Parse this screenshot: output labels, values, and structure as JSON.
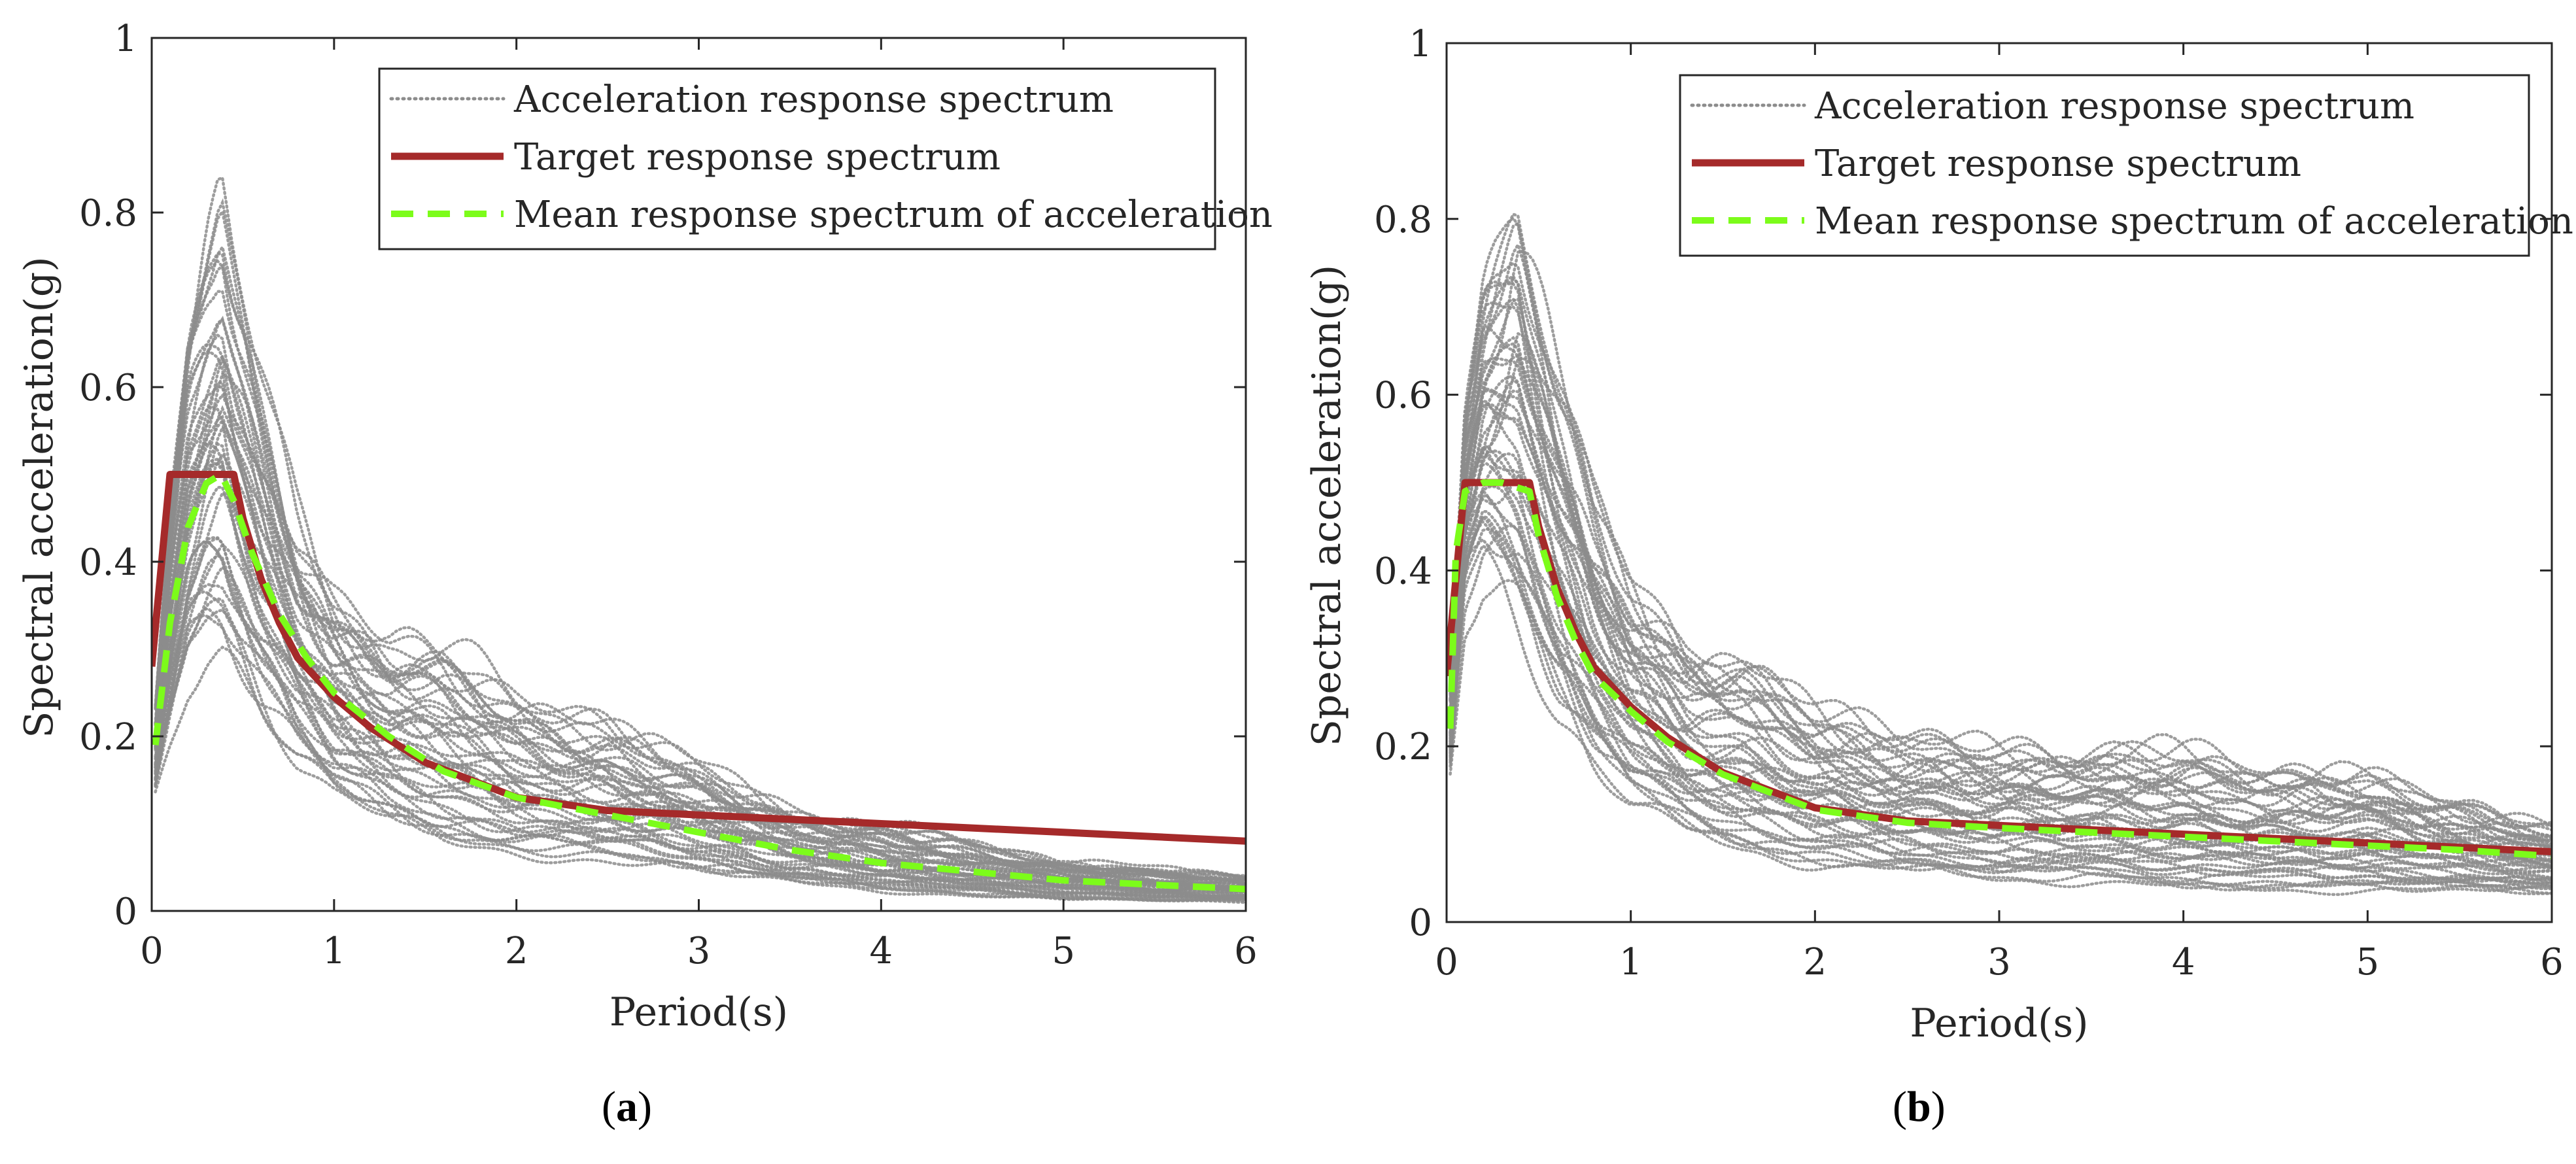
{
  "chart_data": [
    {
      "id": "a",
      "type": "line",
      "caption_label": "a",
      "xlabel": "Period(s)",
      "ylabel": "Spectral acceleration(g)",
      "xlim": [
        0,
        6
      ],
      "ylim": [
        0,
        1
      ],
      "xticks": [
        "0",
        "1",
        "2",
        "3",
        "4",
        "5",
        "6"
      ],
      "yticks": [
        "0",
        "0.2",
        "0.4",
        "0.6",
        "0.8",
        "1"
      ],
      "legend": [
        "Acceleration response spectrum",
        "Target response spectrum",
        "Mean response spectrum of acceleration"
      ],
      "legend_position": "top-right",
      "band_note": "many individual acceleration response spectra drawn as grey dotted lines; envelope approximated",
      "band": {
        "x": [
          0.02,
          0.1,
          0.2,
          0.3,
          0.38,
          0.45,
          0.6,
          0.8,
          1.0,
          1.3,
          1.6,
          2.0,
          2.5,
          3.0,
          3.5,
          4.0,
          4.5,
          5.0,
          5.5,
          6.0
        ],
        "upper": [
          0.22,
          0.45,
          0.66,
          0.75,
          0.8,
          0.72,
          0.6,
          0.46,
          0.38,
          0.32,
          0.3,
          0.25,
          0.22,
          0.17,
          0.12,
          0.1,
          0.08,
          0.06,
          0.05,
          0.04
        ],
        "lower": [
          0.14,
          0.2,
          0.27,
          0.3,
          0.3,
          0.28,
          0.22,
          0.16,
          0.12,
          0.09,
          0.07,
          0.06,
          0.05,
          0.04,
          0.03,
          0.02,
          0.015,
          0.01,
          0.01,
          0.01
        ]
      },
      "series": [
        {
          "name": "Target response spectrum",
          "color": "#a52a2a",
          "x": [
            0,
            0.1,
            0.45,
            0.5,
            0.6,
            0.7,
            0.8,
            1.0,
            1.2,
            1.5,
            2.0,
            2.5,
            3.0,
            4.0,
            5.0,
            6.0
          ],
          "y": [
            0.28,
            0.5,
            0.5,
            0.45,
            0.38,
            0.33,
            0.29,
            0.245,
            0.21,
            0.17,
            0.13,
            0.115,
            0.11,
            0.1,
            0.09,
            0.08
          ]
        },
        {
          "name": "Mean response spectrum of acceleration",
          "color": "#7cfc1a",
          "x": [
            0.02,
            0.1,
            0.2,
            0.3,
            0.38,
            0.45,
            0.55,
            0.7,
            0.85,
            1.0,
            1.3,
            1.6,
            2.0,
            2.5,
            3.0,
            3.5,
            4.0,
            4.5,
            5.0,
            5.5,
            6.0
          ],
          "y": [
            0.19,
            0.33,
            0.44,
            0.49,
            0.5,
            0.47,
            0.41,
            0.34,
            0.29,
            0.25,
            0.2,
            0.16,
            0.13,
            0.11,
            0.09,
            0.07,
            0.055,
            0.045,
            0.035,
            0.03,
            0.025
          ]
        }
      ]
    },
    {
      "id": "b",
      "type": "line",
      "caption_label": "b",
      "xlabel": "Period(s)",
      "ylabel": "Spectral acceleration(g)",
      "xlim": [
        0,
        6
      ],
      "ylim": [
        0,
        1
      ],
      "xticks": [
        "0",
        "1",
        "2",
        "3",
        "4",
        "5",
        "6"
      ],
      "yticks": [
        "0",
        "0.2",
        "0.4",
        "0.6",
        "0.8",
        "1"
      ],
      "legend": [
        "Acceleration response spectrum",
        "Target response spectrum",
        "Mean response spectrum of acceleration"
      ],
      "legend_position": "top-right",
      "band_note": "many individual acceleration response spectra drawn as grey dotted lines; envelope approximated",
      "band": {
        "x": [
          0.02,
          0.1,
          0.2,
          0.3,
          0.38,
          0.45,
          0.6,
          0.8,
          1.0,
          1.3,
          1.6,
          2.0,
          2.5,
          3.0,
          3.5,
          4.0,
          4.5,
          5.0,
          5.5,
          6.0
        ],
        "upper": [
          0.26,
          0.6,
          0.72,
          0.76,
          0.81,
          0.75,
          0.62,
          0.48,
          0.4,
          0.32,
          0.3,
          0.25,
          0.22,
          0.2,
          0.2,
          0.2,
          0.18,
          0.17,
          0.14,
          0.11
        ],
        "lower": [
          0.18,
          0.36,
          0.4,
          0.38,
          0.35,
          0.32,
          0.24,
          0.17,
          0.12,
          0.09,
          0.07,
          0.06,
          0.05,
          0.04,
          0.04,
          0.03,
          0.03,
          0.03,
          0.03,
          0.03
        ]
      },
      "series": [
        {
          "name": "Target response spectrum",
          "color": "#a52a2a",
          "x": [
            0,
            0.1,
            0.45,
            0.5,
            0.6,
            0.7,
            0.8,
            1.0,
            1.2,
            1.5,
            2.0,
            2.5,
            3.0,
            4.0,
            5.0,
            6.0
          ],
          "y": [
            0.28,
            0.5,
            0.5,
            0.45,
            0.38,
            0.33,
            0.29,
            0.245,
            0.21,
            0.17,
            0.13,
            0.115,
            0.11,
            0.1,
            0.09,
            0.08
          ]
        },
        {
          "name": "Mean response spectrum of acceleration",
          "color": "#7cfc1a",
          "x": [
            0.02,
            0.05,
            0.1,
            0.2,
            0.3,
            0.45,
            0.5,
            0.6,
            0.7,
            0.8,
            1.0,
            1.2,
            1.5,
            2.0,
            2.5,
            3.0,
            3.5,
            4.0,
            4.5,
            5.0,
            5.5,
            6.0
          ],
          "y": [
            0.22,
            0.42,
            0.49,
            0.5,
            0.5,
            0.49,
            0.44,
            0.37,
            0.32,
            0.28,
            0.24,
            0.205,
            0.168,
            0.128,
            0.113,
            0.107,
            0.102,
            0.097,
            0.092,
            0.087,
            0.082,
            0.075
          ]
        }
      ]
    }
  ]
}
